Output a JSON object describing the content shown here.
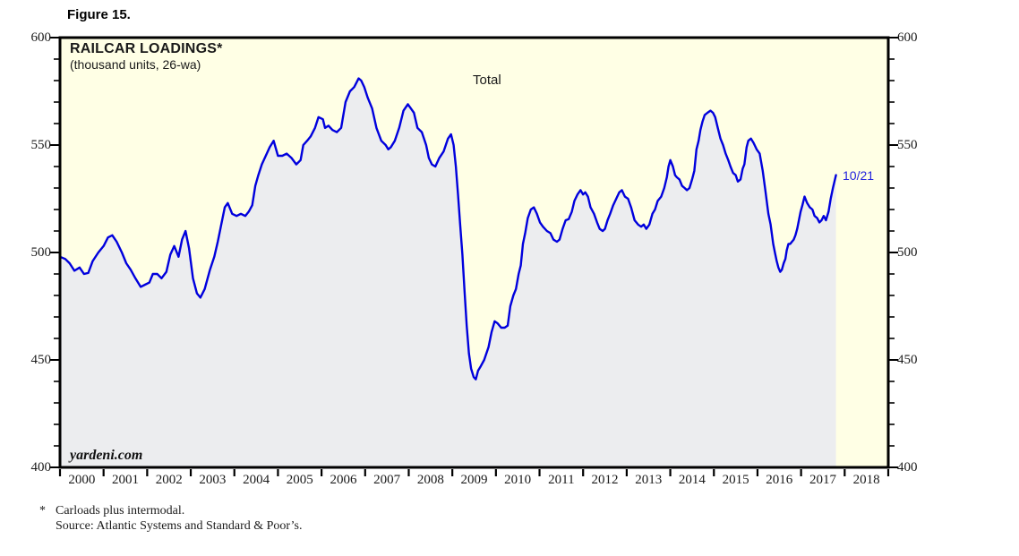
{
  "figure_label": "Figure 15.",
  "chart": {
    "title": "RAILCAR LOADINGS*",
    "subtitle": "(thousand units, 26-wa)",
    "series_label": "Total",
    "endpoint_label": "10/21",
    "watermark": "yardeni.com"
  },
  "footnote": {
    "marker": "*",
    "line1": "Carloads plus intermodal.",
    "line2": "Source: Atlantic Systems and Standard & Poor’s."
  },
  "chart_data": {
    "type": "line",
    "title": "RAILCAR LOADINGS*",
    "subtitle": "(thousand units, 26-wa)",
    "ylabel": "thousand units",
    "ylim": [
      400,
      600
    ],
    "xlim": [
      2000,
      2019
    ],
    "y_major_ticks": [
      400,
      450,
      500,
      550,
      600
    ],
    "y_minor_step": 10,
    "x_year_labels": [
      "2000",
      "2001",
      "2002",
      "2003",
      "2004",
      "2005",
      "2006",
      "2007",
      "2008",
      "2009",
      "2010",
      "2011",
      "2012",
      "2013",
      "2014",
      "2015",
      "2016",
      "2017",
      "2018"
    ],
    "grid": false,
    "legend_position": "none",
    "colors": {
      "background": "#FFFFE5",
      "area_fill": "#ECEDEF",
      "line": "#0000DD",
      "axis": "#000000",
      "end_label": "#2222DD"
    },
    "end_label": {
      "text": "10/21",
      "x": 2017.8,
      "value": 536
    },
    "series": [
      {
        "name": "Total",
        "points": [
          [
            2000.0,
            498
          ],
          [
            2000.12,
            497
          ],
          [
            2000.22,
            495
          ],
          [
            2000.33,
            491.5
          ],
          [
            2000.45,
            493
          ],
          [
            2000.55,
            490
          ],
          [
            2000.65,
            490.5
          ],
          [
            2000.75,
            496
          ],
          [
            2000.88,
            500
          ],
          [
            2001.0,
            503
          ],
          [
            2001.1,
            507
          ],
          [
            2001.2,
            508
          ],
          [
            2001.3,
            505
          ],
          [
            2001.42,
            500
          ],
          [
            2001.52,
            495
          ],
          [
            2001.62,
            492
          ],
          [
            2001.73,
            488
          ],
          [
            2001.85,
            484
          ],
          [
            2001.95,
            485
          ],
          [
            2002.05,
            486
          ],
          [
            2002.13,
            490
          ],
          [
            2002.23,
            490
          ],
          [
            2002.33,
            488
          ],
          [
            2002.44,
            491
          ],
          [
            2002.53,
            499
          ],
          [
            2002.62,
            503
          ],
          [
            2002.72,
            498
          ],
          [
            2002.8,
            506
          ],
          [
            2002.88,
            510
          ],
          [
            2002.96,
            502
          ],
          [
            2003.05,
            488
          ],
          [
            2003.14,
            481
          ],
          [
            2003.22,
            479
          ],
          [
            2003.32,
            483
          ],
          [
            2003.44,
            492
          ],
          [
            2003.54,
            498
          ],
          [
            2003.62,
            505
          ],
          [
            2003.7,
            513
          ],
          [
            2003.78,
            521
          ],
          [
            2003.85,
            523
          ],
          [
            2003.95,
            518
          ],
          [
            2004.05,
            517
          ],
          [
            2004.15,
            518
          ],
          [
            2004.25,
            517
          ],
          [
            2004.33,
            519
          ],
          [
            2004.41,
            522
          ],
          [
            2004.48,
            531
          ],
          [
            2004.55,
            536
          ],
          [
            2004.63,
            541
          ],
          [
            2004.72,
            545
          ],
          [
            2004.81,
            549
          ],
          [
            2004.9,
            552
          ],
          [
            2005.0,
            545
          ],
          [
            2005.1,
            545
          ],
          [
            2005.2,
            546
          ],
          [
            2005.31,
            544
          ],
          [
            2005.42,
            541
          ],
          [
            2005.52,
            543
          ],
          [
            2005.58,
            550
          ],
          [
            2005.67,
            552
          ],
          [
            2005.75,
            554
          ],
          [
            2005.85,
            558
          ],
          [
            2005.93,
            563
          ],
          [
            2006.03,
            562
          ],
          [
            2006.08,
            558
          ],
          [
            2006.16,
            559
          ],
          [
            2006.25,
            557
          ],
          [
            2006.35,
            556
          ],
          [
            2006.45,
            558
          ],
          [
            2006.55,
            570
          ],
          [
            2006.65,
            575
          ],
          [
            2006.75,
            577
          ],
          [
            2006.85,
            581
          ],
          [
            2006.91,
            580
          ],
          [
            2006.98,
            577
          ],
          [
            2007.06,
            572
          ],
          [
            2007.16,
            567
          ],
          [
            2007.26,
            558
          ],
          [
            2007.37,
            552
          ],
          [
            2007.47,
            550
          ],
          [
            2007.53,
            548
          ],
          [
            2007.59,
            549
          ],
          [
            2007.68,
            552
          ],
          [
            2007.78,
            558
          ],
          [
            2007.88,
            566
          ],
          [
            2007.98,
            569
          ],
          [
            2008.05,
            567
          ],
          [
            2008.12,
            565
          ],
          [
            2008.2,
            558
          ],
          [
            2008.3,
            556
          ],
          [
            2008.4,
            550
          ],
          [
            2008.46,
            544
          ],
          [
            2008.53,
            541
          ],
          [
            2008.61,
            540
          ],
          [
            2008.7,
            544
          ],
          [
            2008.8,
            547
          ],
          [
            2008.9,
            553
          ],
          [
            2008.97,
            555
          ],
          [
            2009.03,
            550
          ],
          [
            2009.08,
            540
          ],
          [
            2009.13,
            527
          ],
          [
            2009.18,
            513
          ],
          [
            2009.23,
            499
          ],
          [
            2009.28,
            482
          ],
          [
            2009.33,
            466
          ],
          [
            2009.38,
            453
          ],
          [
            2009.43,
            446
          ],
          [
            2009.49,
            442
          ],
          [
            2009.54,
            441
          ],
          [
            2009.59,
            445
          ],
          [
            2009.65,
            447
          ],
          [
            2009.73,
            450
          ],
          [
            2009.83,
            456
          ],
          [
            2009.9,
            463
          ],
          [
            2009.97,
            468
          ],
          [
            2010.04,
            467
          ],
          [
            2010.12,
            465
          ],
          [
            2010.2,
            465
          ],
          [
            2010.27,
            466
          ],
          [
            2010.33,
            475
          ],
          [
            2010.4,
            480
          ],
          [
            2010.46,
            483
          ],
          [
            2010.52,
            490
          ],
          [
            2010.57,
            494
          ],
          [
            2010.62,
            504
          ],
          [
            2010.67,
            509
          ],
          [
            2010.73,
            516
          ],
          [
            2010.8,
            520
          ],
          [
            2010.87,
            521
          ],
          [
            2010.94,
            518
          ],
          [
            2011.01,
            514
          ],
          [
            2011.08,
            512
          ],
          [
            2011.17,
            510
          ],
          [
            2011.25,
            509
          ],
          [
            2011.32,
            506
          ],
          [
            2011.4,
            505
          ],
          [
            2011.46,
            506
          ],
          [
            2011.53,
            511
          ],
          [
            2011.6,
            515
          ],
          [
            2011.67,
            515.5
          ],
          [
            2011.74,
            519
          ],
          [
            2011.8,
            524
          ],
          [
            2011.87,
            527
          ],
          [
            2011.94,
            529
          ],
          [
            2012.0,
            527
          ],
          [
            2012.05,
            528
          ],
          [
            2012.11,
            526
          ],
          [
            2012.17,
            521
          ],
          [
            2012.25,
            518
          ],
          [
            2012.32,
            514
          ],
          [
            2012.38,
            511
          ],
          [
            2012.45,
            510
          ],
          [
            2012.5,
            511
          ],
          [
            2012.56,
            515
          ],
          [
            2012.62,
            518
          ],
          [
            2012.69,
            522
          ],
          [
            2012.76,
            525
          ],
          [
            2012.83,
            528
          ],
          [
            2012.89,
            529
          ],
          [
            2012.96,
            526
          ],
          [
            2013.03,
            525
          ],
          [
            2013.1,
            521
          ],
          [
            2013.18,
            515
          ],
          [
            2013.26,
            513
          ],
          [
            2013.33,
            512
          ],
          [
            2013.39,
            513
          ],
          [
            2013.45,
            511
          ],
          [
            2013.52,
            513
          ],
          [
            2013.59,
            518
          ],
          [
            2013.65,
            520
          ],
          [
            2013.71,
            524
          ],
          [
            2013.79,
            526
          ],
          [
            2013.86,
            530
          ],
          [
            2013.92,
            535
          ],
          [
            2013.96,
            540
          ],
          [
            2014.0,
            543
          ],
          [
            2014.06,
            540
          ],
          [
            2014.11,
            536
          ],
          [
            2014.15,
            535
          ],
          [
            2014.21,
            534
          ],
          [
            2014.27,
            531
          ],
          [
            2014.33,
            530
          ],
          [
            2014.38,
            529
          ],
          [
            2014.44,
            530
          ],
          [
            2014.5,
            534
          ],
          [
            2014.55,
            538
          ],
          [
            2014.6,
            548
          ],
          [
            2014.65,
            552
          ],
          [
            2014.69,
            557
          ],
          [
            2014.74,
            561
          ],
          [
            2014.79,
            564
          ],
          [
            2014.85,
            565
          ],
          [
            2014.92,
            566
          ],
          [
            2014.98,
            565
          ],
          [
            2015.03,
            563
          ],
          [
            2015.09,
            558
          ],
          [
            2015.15,
            553
          ],
          [
            2015.21,
            550
          ],
          [
            2015.27,
            546
          ],
          [
            2015.33,
            543
          ],
          [
            2015.38,
            540
          ],
          [
            2015.44,
            537
          ],
          [
            2015.5,
            536
          ],
          [
            2015.55,
            533
          ],
          [
            2015.61,
            534
          ],
          [
            2015.66,
            539
          ],
          [
            2015.7,
            541
          ],
          [
            2015.75,
            549
          ],
          [
            2015.79,
            552
          ],
          [
            2015.85,
            553
          ],
          [
            2015.91,
            551
          ],
          [
            2015.98,
            548
          ],
          [
            2016.05,
            546
          ],
          [
            2016.12,
            538
          ],
          [
            2016.18,
            529
          ],
          [
            2016.25,
            518
          ],
          [
            2016.3,
            513
          ],
          [
            2016.36,
            504
          ],
          [
            2016.4,
            500
          ],
          [
            2016.44,
            496
          ],
          [
            2016.48,
            493
          ],
          [
            2016.52,
            491
          ],
          [
            2016.56,
            492
          ],
          [
            2016.6,
            495
          ],
          [
            2016.64,
            497
          ],
          [
            2016.67,
            501
          ],
          [
            2016.71,
            504
          ],
          [
            2016.75,
            504
          ],
          [
            2016.79,
            505
          ],
          [
            2016.83,
            506
          ],
          [
            2016.87,
            508
          ],
          [
            2016.91,
            511
          ],
          [
            2016.95,
            515
          ],
          [
            2016.99,
            519
          ],
          [
            2017.03,
            522
          ],
          [
            2017.08,
            526
          ],
          [
            2017.14,
            523
          ],
          [
            2017.2,
            521
          ],
          [
            2017.26,
            520
          ],
          [
            2017.31,
            517
          ],
          [
            2017.37,
            516
          ],
          [
            2017.42,
            514
          ],
          [
            2017.47,
            515
          ],
          [
            2017.52,
            517
          ],
          [
            2017.57,
            515
          ],
          [
            2017.63,
            519
          ],
          [
            2017.68,
            525
          ],
          [
            2017.73,
            530
          ],
          [
            2017.8,
            536
          ]
        ]
      }
    ]
  }
}
